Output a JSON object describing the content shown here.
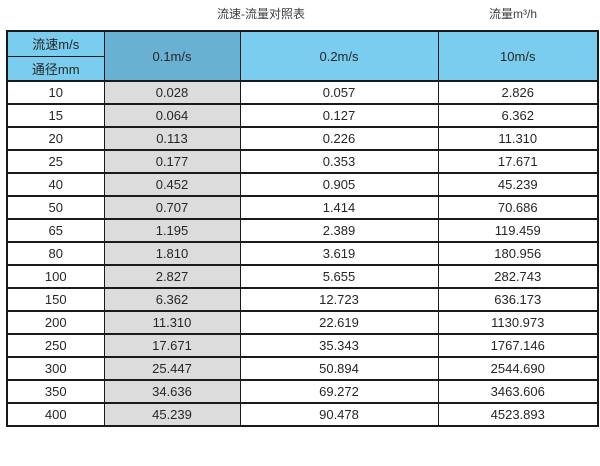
{
  "page": {
    "title": "流速-流量对照表",
    "unit_label": "流量m³/h"
  },
  "colors": {
    "header_blue": "#7bcdef",
    "highlight_header_blue": "#69b1d3",
    "highlight_column_gray": "#dcdcdc",
    "border": "#1a1a1a",
    "text": "#262626"
  },
  "chart_data": {
    "type": "table",
    "title": "流速-流量对照表",
    "unit_label": "流量m³/h",
    "col_header": "流速m/s",
    "row_header": "通径mm",
    "columns": [
      "0.1m/s",
      "0.2m/s",
      "10m/s"
    ],
    "highlighted_column": "0.1m/s",
    "rows": [
      {
        "diameter_mm": "10",
        "values": [
          "0.028",
          "0.057",
          "2.826"
        ]
      },
      {
        "diameter_mm": "15",
        "values": [
          "0.064",
          "0.127",
          "6.362"
        ]
      },
      {
        "diameter_mm": "20",
        "values": [
          "0.113",
          "0.226",
          "11.310"
        ]
      },
      {
        "diameter_mm": "25",
        "values": [
          "0.177",
          "0.353",
          "17.671"
        ]
      },
      {
        "diameter_mm": "40",
        "values": [
          "0.452",
          "0.905",
          "45.239"
        ]
      },
      {
        "diameter_mm": "50",
        "values": [
          "0.707",
          "1.414",
          "70.686"
        ]
      },
      {
        "diameter_mm": "65",
        "values": [
          "1.195",
          "2.389",
          "119.459"
        ]
      },
      {
        "diameter_mm": "80",
        "values": [
          "1.810",
          "3.619",
          "180.956"
        ]
      },
      {
        "diameter_mm": "100",
        "values": [
          "2.827",
          "5.655",
          "282.743"
        ]
      },
      {
        "diameter_mm": "150",
        "values": [
          "6.362",
          "12.723",
          "636.173"
        ]
      },
      {
        "diameter_mm": "200",
        "values": [
          "11.310",
          "22.619",
          "1130.973"
        ]
      },
      {
        "diameter_mm": "250",
        "values": [
          "17.671",
          "35.343",
          "1767.146"
        ]
      },
      {
        "diameter_mm": "300",
        "values": [
          "25.447",
          "50.894",
          "2544.690"
        ]
      },
      {
        "diameter_mm": "350",
        "values": [
          "34.636",
          "69.272",
          "3463.606"
        ]
      },
      {
        "diameter_mm": "400",
        "values": [
          "45.239",
          "90.478",
          "4523.893"
        ]
      }
    ]
  }
}
